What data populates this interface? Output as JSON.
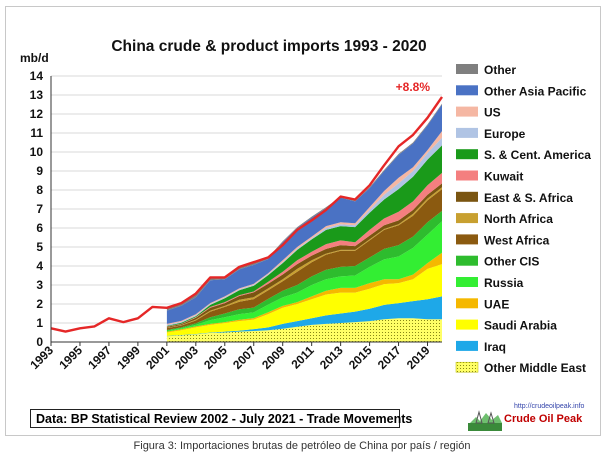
{
  "caption": "Figura 3: Importaciones brutas de petróleo de China por país / región",
  "source_note": "Data: BP Statistical Review 2002 - July 2021 - Trade Movements",
  "logo": {
    "url": "http://crudeoilpeak.info",
    "name": "Crude Oil Peak"
  },
  "chart_data": {
    "type": "area",
    "title": "China crude & product imports 1993 - 2020",
    "ylabel": "mb/d",
    "ylim": [
      0,
      14
    ],
    "yticks": [
      "0",
      "1",
      "2",
      "3",
      "4",
      "5",
      "6",
      "7",
      "8",
      "9",
      "10",
      "11",
      "12",
      "13",
      "14"
    ],
    "xticks": [
      "1993",
      "1995",
      "1997",
      "1999",
      "2001",
      "2003",
      "2005",
      "2007",
      "2009",
      "2011",
      "2013",
      "2015",
      "2017",
      "2019"
    ],
    "annotation": "+8.8%",
    "colors": {
      "total_line": "#e52727",
      "Other": "#7f7f7f",
      "Other Asia Pacific": "#4a72c4",
      "US": "#f5b7a3",
      "Europe": "#b0c4e4",
      "S. & Cent. America": "#1a9a1a",
      "Kuwait": "#f47f7f",
      "East & S. Africa": "#7a5511",
      "North Africa": "#c8a030",
      "West Africa": "#8b5a10",
      "Other CIS": "#2ebc2e",
      "Russia": "#33ee33",
      "UAE": "#f5b800",
      "Saudi Arabia": "#ffff00",
      "Iraq": "#1ea8e8",
      "Other Middle East": "#ffff66"
    },
    "total_series": {
      "x": [
        1993,
        1994,
        1995,
        1996,
        1997,
        1998,
        1999,
        2000,
        2001,
        2002,
        2003,
        2004,
        2005,
        2006,
        2007,
        2008,
        2009,
        2010,
        2011,
        2012,
        2013,
        2014,
        2015,
        2016,
        2017,
        2018,
        2019,
        2020
      ],
      "values": [
        0.72,
        0.55,
        0.72,
        0.82,
        1.25,
        1.05,
        1.25,
        1.85,
        1.8,
        2.05,
        2.55,
        3.4,
        3.4,
        3.95,
        4.2,
        4.45,
        5.1,
        5.9,
        6.4,
        6.95,
        7.65,
        7.5,
        8.25,
        9.3,
        10.3,
        10.9,
        11.8,
        12.9
      ]
    },
    "stack_x": [
      2001,
      2002,
      2003,
      2004,
      2005,
      2006,
      2007,
      2008,
      2009,
      2010,
      2011,
      2012,
      2013,
      2014,
      2015,
      2016,
      2017,
      2018,
      2019,
      2020
    ],
    "stacked_series": [
      {
        "name": "Other Middle East",
        "values": [
          0.3,
          0.35,
          0.4,
          0.48,
          0.5,
          0.55,
          0.58,
          0.62,
          0.7,
          0.8,
          0.9,
          0.95,
          1.0,
          1.05,
          1.1,
          1.2,
          1.25,
          1.25,
          1.2,
          1.2
        ]
      },
      {
        "name": "Iraq",
        "values": [
          0.02,
          0.02,
          0.02,
          0.02,
          0.05,
          0.05,
          0.1,
          0.15,
          0.25,
          0.3,
          0.35,
          0.45,
          0.5,
          0.55,
          0.65,
          0.75,
          0.8,
          0.9,
          1.05,
          1.2
        ]
      },
      {
        "name": "Saudi Arabia",
        "values": [
          0.18,
          0.25,
          0.35,
          0.4,
          0.45,
          0.5,
          0.5,
          0.7,
          0.85,
          0.9,
          1.0,
          1.1,
          1.1,
          1.0,
          1.05,
          1.1,
          1.05,
          1.15,
          1.6,
          1.7
        ]
      },
      {
        "name": "UAE",
        "values": [
          0.05,
          0.05,
          0.05,
          0.05,
          0.05,
          0.07,
          0.08,
          0.1,
          0.1,
          0.1,
          0.15,
          0.2,
          0.25,
          0.25,
          0.3,
          0.25,
          0.2,
          0.25,
          0.3,
          0.6
        ]
      },
      {
        "name": "Russia",
        "values": [
          0.05,
          0.05,
          0.08,
          0.2,
          0.25,
          0.3,
          0.3,
          0.4,
          0.45,
          0.5,
          0.6,
          0.6,
          0.6,
          0.65,
          0.85,
          1.05,
          1.2,
          1.4,
          1.5,
          1.65
        ]
      },
      {
        "name": "Other CIS",
        "values": [
          0.03,
          0.05,
          0.08,
          0.15,
          0.2,
          0.25,
          0.25,
          0.3,
          0.35,
          0.4,
          0.45,
          0.5,
          0.5,
          0.5,
          0.5,
          0.55,
          0.6,
          0.6,
          0.65,
          0.55
        ]
      },
      {
        "name": "West Africa",
        "values": [
          0.1,
          0.1,
          0.15,
          0.3,
          0.35,
          0.4,
          0.45,
          0.45,
          0.5,
          0.7,
          0.75,
          0.8,
          0.85,
          0.8,
          0.9,
          1.0,
          1.05,
          1.1,
          1.15,
          1.15
        ]
      },
      {
        "name": "North Africa",
        "values": [
          0.02,
          0.02,
          0.05,
          0.05,
          0.05,
          0.1,
          0.1,
          0.1,
          0.1,
          0.15,
          0.1,
          0.05,
          0.05,
          0.05,
          0.05,
          0.05,
          0.05,
          0.1,
          0.1,
          0.1
        ]
      },
      {
        "name": "East & S. Africa",
        "values": [
          0.05,
          0.05,
          0.1,
          0.15,
          0.15,
          0.2,
          0.25,
          0.25,
          0.25,
          0.25,
          0.25,
          0.25,
          0.25,
          0.2,
          0.2,
          0.2,
          0.2,
          0.2,
          0.2,
          0.2
        ]
      },
      {
        "name": "Kuwait",
        "values": [
          0.02,
          0.02,
          0.03,
          0.05,
          0.05,
          0.05,
          0.05,
          0.1,
          0.15,
          0.2,
          0.2,
          0.25,
          0.25,
          0.2,
          0.3,
          0.35,
          0.45,
          0.45,
          0.5,
          0.55
        ]
      },
      {
        "name": "S. & Cent. America",
        "values": [
          0.03,
          0.05,
          0.05,
          0.1,
          0.2,
          0.25,
          0.3,
          0.35,
          0.45,
          0.55,
          0.65,
          0.75,
          0.75,
          0.8,
          0.9,
          1.0,
          1.2,
          1.3,
          1.35,
          1.45
        ]
      },
      {
        "name": "Europe",
        "values": [
          0.05,
          0.05,
          0.05,
          0.05,
          0.05,
          0.05,
          0.05,
          0.05,
          0.05,
          0.05,
          0.05,
          0.1,
          0.1,
          0.1,
          0.15,
          0.25,
          0.3,
          0.3,
          0.35,
          0.4
        ]
      },
      {
        "name": "US",
        "values": [
          0.05,
          0.05,
          0.05,
          0.05,
          0.05,
          0.05,
          0.05,
          0.05,
          0.1,
          0.1,
          0.1,
          0.1,
          0.1,
          0.1,
          0.15,
          0.2,
          0.3,
          0.2,
          0.15,
          0.35
        ]
      },
      {
        "name": "Other Asia Pacific",
        "values": [
          0.7,
          0.8,
          0.9,
          1.2,
          0.9,
          1.0,
          1.0,
          0.75,
          0.95,
          1.0,
          1.0,
          0.95,
          1.3,
          1.15,
          1.0,
          1.05,
          1.2,
          1.25,
          1.3,
          1.4
        ]
      },
      {
        "name": "Other",
        "values": [
          0.15,
          0.15,
          0.15,
          0.15,
          0.1,
          0.13,
          0.13,
          0.08,
          0.05,
          0.05,
          0.05,
          0.05,
          0.05,
          0.05,
          0.05,
          0.05,
          0.05,
          0.05,
          0.05,
          0.05
        ]
      }
    ],
    "legend": [
      "Other",
      "Other Asia Pacific",
      "US",
      "Europe",
      "S. & Cent. America",
      "Kuwait",
      "East & S. Africa",
      "North Africa",
      "West Africa",
      "Other CIS",
      "Russia",
      "UAE",
      "Saudi Arabia",
      "Iraq",
      "Other Middle East"
    ]
  }
}
